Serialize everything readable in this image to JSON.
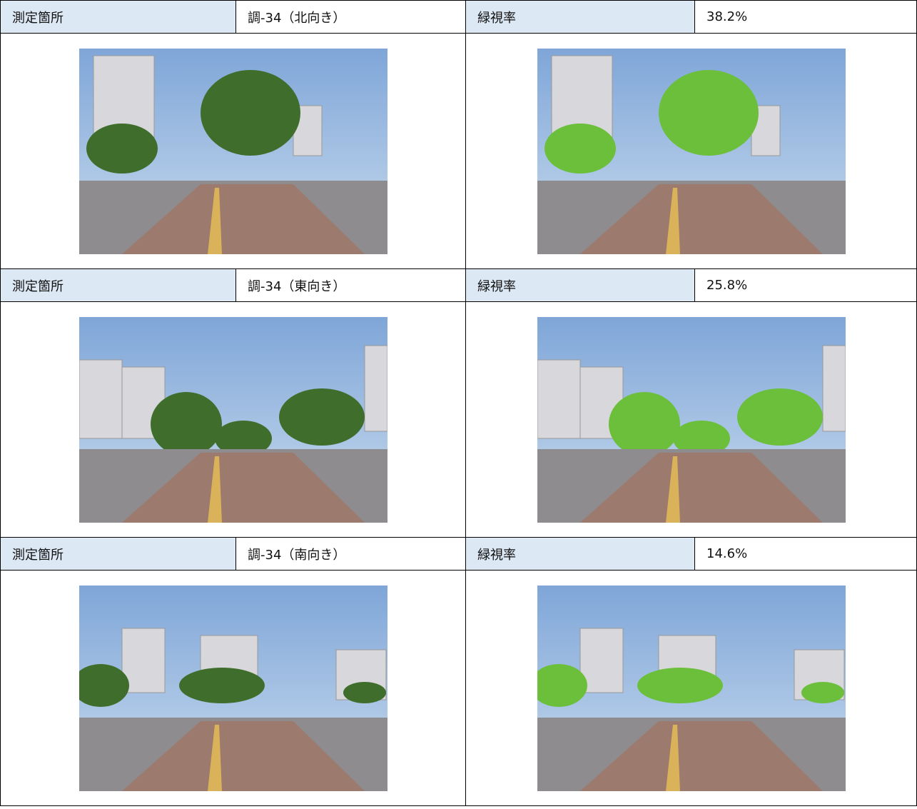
{
  "rows": [
    {
      "location_label": "測定箇所",
      "location": "調-34（北向き）",
      "ratio_label": "緑視率",
      "ratio": "38.2%"
    },
    {
      "location_label": "測定箇所",
      "location": "調-34（東向き）",
      "ratio_label": "緑視率",
      "ratio": "25.8%"
    },
    {
      "location_label": "測定箇所",
      "location": "調-34（南向き）",
      "ratio_label": "緑視率",
      "ratio": "14.6%"
    }
  ]
}
